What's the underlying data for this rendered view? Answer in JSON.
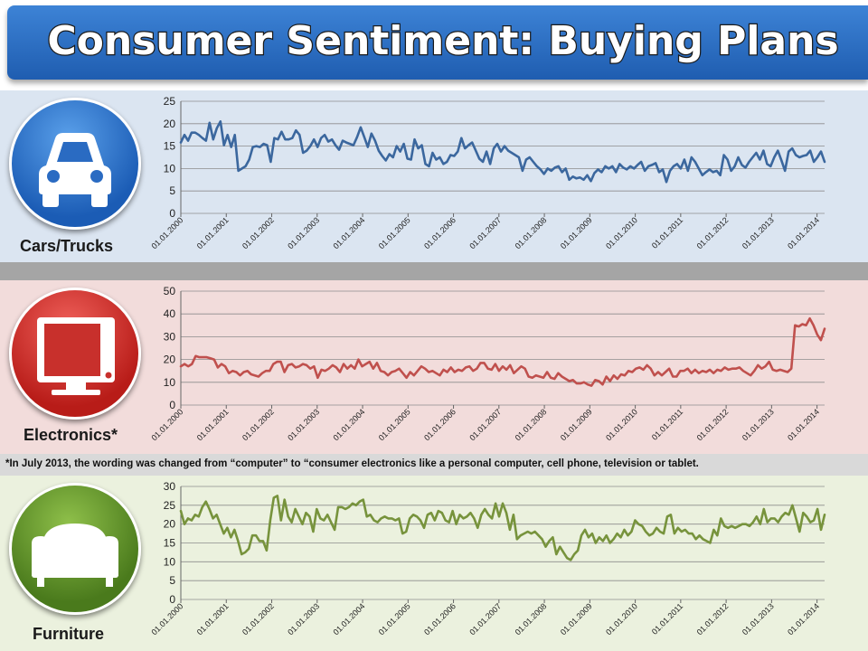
{
  "title": "Consumer Sentiment: Buying Plans",
  "note": "*In July 2013, the wording was changed from “computer” to “consumer electronics like a personal computer, cell phone, television or tablet.",
  "icons": {
    "cars": "car-icon",
    "electronics": "monitor-icon",
    "furniture": "sofa-icon"
  },
  "colors": {
    "title_bg": "#2e6fc4",
    "cars_line": "#3b679e",
    "electronics_line": "#c0504d",
    "furniture_line": "#77933c",
    "cars_bg": "#dbe5f1",
    "electronics_bg": "#f2dcdb",
    "furniture_bg": "#ebf1de"
  },
  "chart_data": [
    {
      "type": "line",
      "panel_label": "Cars/Trucks",
      "x_labels": [
        "01.01.2000",
        "01.01.2001",
        "01.01.2002",
        "01.01.2003",
        "01.01.2004",
        "01.01.2005",
        "01.01.2006",
        "01.01.2007",
        "01.01.2008",
        "01.01.2009",
        "01.01.2010",
        "01.01.2011",
        "01.01.2012",
        "01.01.2013",
        "01.01.2014"
      ],
      "x_start": "2000-01",
      "x_end": "2014-03",
      "ylim": [
        0,
        25
      ],
      "yticks": [
        0,
        5,
        10,
        15,
        20,
        25
      ],
      "grid": true,
      "series": [
        {
          "color": "#3b679e",
          "values": [
            15.8,
            17.5,
            16.2,
            18.0,
            18.0,
            17.5,
            16.8,
            16.2,
            20.2,
            16.5,
            19.0,
            20.5,
            15.2,
            17.5,
            14.8,
            17.5,
            9.5,
            10.0,
            10.5,
            12.0,
            14.8,
            15.0,
            14.8,
            15.5,
            15.2,
            11.5,
            16.8,
            16.5,
            18.2,
            16.5,
            16.5,
            16.8,
            18.5,
            17.5,
            13.5,
            14.0,
            15.0,
            16.5,
            14.8,
            16.8,
            17.5,
            16.0,
            16.5,
            15.2,
            14.2,
            16.2,
            15.8,
            15.5,
            15.2,
            17.0,
            19.2,
            17.0,
            14.8,
            17.8,
            16.2,
            14.0,
            12.8,
            11.8,
            13.2,
            12.5,
            15.0,
            13.8,
            15.5,
            12.2,
            12.0,
            16.5,
            14.5,
            15.2,
            11.0,
            10.5,
            13.5,
            12.0,
            12.5,
            11.0,
            11.5,
            13.0,
            12.8,
            13.8,
            16.8,
            14.5,
            15.2,
            15.8,
            14.0,
            12.2,
            11.5,
            13.8,
            11.0,
            14.5,
            15.5,
            13.8,
            15.0,
            14.0,
            13.5,
            13.0,
            12.5,
            9.5,
            12.0,
            12.5,
            11.5,
            10.5,
            9.8,
            8.8,
            10.0,
            9.5,
            10.2,
            10.5,
            9.2,
            10.0,
            7.5,
            8.2,
            7.8,
            8.0,
            7.5,
            8.5,
            7.2,
            9.0,
            9.8,
            9.2,
            10.5,
            10.0,
            10.5,
            9.2,
            11.0,
            10.2,
            9.8,
            10.5,
            10.0,
            10.8,
            11.5,
            9.5,
            10.5,
            10.8,
            11.2,
            9.2,
            9.8,
            7.0,
            9.5,
            10.5,
            11.0,
            10.0,
            12.0,
            9.5,
            12.5,
            11.5,
            10.0,
            8.5,
            9.2,
            9.8,
            9.2,
            9.5,
            8.5,
            13.0,
            12.0,
            9.5,
            10.5,
            12.5,
            10.8,
            10.2,
            11.5,
            12.5,
            13.5,
            12.0,
            14.0,
            11.0,
            10.5,
            12.5,
            14.0,
            11.8,
            9.5,
            13.8,
            14.5,
            13.0,
            12.5,
            12.8,
            13.0,
            14.0,
            11.5,
            12.5,
            13.8,
            11.5
          ]
        }
      ]
    },
    {
      "type": "line",
      "panel_label": "Electronics*",
      "x_labels": [
        "01.01.2000",
        "01.01.2001",
        "01.01.2002",
        "01.01.2003",
        "01.01.2004",
        "01.01.2005",
        "01.01.2006",
        "01.01.2007",
        "01.01.2008",
        "01.01.2009",
        "01.01.2010",
        "01.01.2011",
        "01.01.2012",
        "01.01.2013",
        "01.01.2014"
      ],
      "x_start": "2000-01",
      "x_end": "2014-03",
      "ylim": [
        0,
        50
      ],
      "yticks": [
        0,
        10,
        20,
        30,
        40,
        50
      ],
      "grid": true,
      "series": [
        {
          "color": "#c0504d",
          "values": [
            17.0,
            18.0,
            17.0,
            18.0,
            21.5,
            21.0,
            21.0,
            21.0,
            20.5,
            20.0,
            16.5,
            18.0,
            17.0,
            14.0,
            15.0,
            14.5,
            13.0,
            14.5,
            15.0,
            13.5,
            13.0,
            12.5,
            14.0,
            15.0,
            15.0,
            18.0,
            19.0,
            19.0,
            14.5,
            17.5,
            18.0,
            16.5,
            17.0,
            18.0,
            17.5,
            16.0,
            17.0,
            12.0,
            15.5,
            15.0,
            16.0,
            17.5,
            16.5,
            14.5,
            18.0,
            16.0,
            17.5,
            16.0,
            20.0,
            17.0,
            18.0,
            19.0,
            16.0,
            18.5,
            15.0,
            14.5,
            13.0,
            14.5,
            15.0,
            16.0,
            14.0,
            12.0,
            14.5,
            13.0,
            15.0,
            17.0,
            16.0,
            14.5,
            15.0,
            14.0,
            13.0,
            15.5,
            14.5,
            16.5,
            14.5,
            15.5,
            15.0,
            16.5,
            17.0,
            15.0,
            16.0,
            18.5,
            18.5,
            16.0,
            15.5,
            18.0,
            15.0,
            17.0,
            15.5,
            17.5,
            14.0,
            15.5,
            17.0,
            16.0,
            12.5,
            12.0,
            13.0,
            12.5,
            12.0,
            14.5,
            12.0,
            11.5,
            14.0,
            12.5,
            11.5,
            10.5,
            11.0,
            9.5,
            9.5,
            10.0,
            9.0,
            8.5,
            11.0,
            10.5,
            9.0,
            12.5,
            10.5,
            13.0,
            11.5,
            13.5,
            13.0,
            15.0,
            14.5,
            16.0,
            16.5,
            15.5,
            17.5,
            16.0,
            13.0,
            14.5,
            13.0,
            14.5,
            16.0,
            12.5,
            12.5,
            15.0,
            15.0,
            16.0,
            14.0,
            15.5,
            14.0,
            15.0,
            14.5,
            15.5,
            14.0,
            15.5,
            15.0,
            16.5,
            15.5,
            16.0,
            16.0,
            16.5,
            15.0,
            14.0,
            13.0,
            15.0,
            17.5,
            16.0,
            17.0,
            19.0,
            15.5,
            15.0,
            15.5,
            15.0,
            14.5,
            16.0,
            35.0,
            34.5,
            35.5,
            35.0,
            38.0,
            35.0,
            31.0,
            28.5,
            33.5
          ]
        }
      ]
    },
    {
      "type": "line",
      "panel_label": "Furniture",
      "x_labels": [
        "01.01.2000",
        "01.01.2001",
        "01.01.2002",
        "01.01.2003",
        "01.01.2004",
        "01.01.2005",
        "01.01.2006",
        "01.01.2007",
        "01.01.2008",
        "01.01.2009",
        "01.01.2010",
        "01.01.2011",
        "01.01.2012",
        "01.01.2013",
        "01.01.2014"
      ],
      "x_start": "2000-01",
      "x_end": "2014-03",
      "ylim": [
        0,
        30
      ],
      "yticks": [
        0,
        5,
        10,
        15,
        20,
        25,
        30
      ],
      "grid": true,
      "series": [
        {
          "color": "#77933c",
          "values": [
            23.5,
            20.0,
            21.5,
            21.0,
            22.5,
            22.0,
            24.5,
            26.0,
            24.0,
            21.5,
            22.5,
            20.0,
            17.5,
            19.0,
            16.5,
            18.5,
            15.5,
            12.0,
            12.5,
            13.5,
            17.0,
            17.0,
            15.5,
            15.5,
            13.0,
            21.0,
            27.0,
            27.5,
            21.0,
            26.5,
            22.0,
            20.5,
            24.0,
            22.0,
            20.0,
            23.0,
            22.0,
            18.0,
            24.0,
            21.5,
            21.0,
            22.5,
            20.5,
            18.5,
            24.5,
            24.5,
            24.0,
            24.5,
            25.5,
            25.0,
            26.0,
            26.5,
            22.0,
            22.5,
            21.0,
            20.5,
            21.5,
            22.0,
            21.5,
            21.5,
            21.0,
            21.5,
            17.5,
            18.0,
            21.5,
            22.5,
            22.0,
            21.0,
            19.0,
            22.5,
            23.0,
            21.0,
            23.5,
            23.0,
            21.0,
            20.5,
            23.5,
            20.0,
            22.5,
            21.5,
            22.0,
            23.0,
            21.5,
            19.0,
            22.5,
            24.0,
            22.5,
            21.5,
            25.5,
            22.0,
            25.5,
            23.0,
            18.5,
            22.5,
            16.0,
            17.0,
            17.5,
            18.0,
            17.5,
            18.0,
            17.0,
            16.0,
            14.0,
            15.5,
            16.5,
            12.0,
            14.0,
            12.5,
            11.0,
            10.5,
            12.0,
            13.0,
            17.0,
            18.5,
            16.5,
            17.5,
            15.0,
            16.5,
            15.5,
            17.0,
            15.0,
            16.0,
            17.5,
            16.5,
            18.5,
            17.0,
            18.0,
            21.0,
            20.0,
            19.5,
            18.0,
            17.0,
            17.5,
            19.0,
            18.0,
            17.5,
            22.0,
            22.5,
            17.5,
            19.0,
            18.0,
            18.5,
            17.5,
            17.5,
            16.0,
            17.0,
            16.0,
            15.5,
            15.0,
            18.5,
            17.0,
            21.5,
            19.5,
            19.0,
            19.5,
            19.0,
            19.5,
            20.0,
            20.0,
            19.5,
            20.5,
            22.0,
            20.0,
            24.0,
            20.5,
            21.5,
            21.5,
            20.5,
            22.0,
            23.0,
            22.5,
            25.0,
            21.5,
            18.0,
            23.0,
            22.0,
            20.5,
            21.0,
            24.0,
            18.5,
            22.5
          ]
        }
      ]
    }
  ]
}
